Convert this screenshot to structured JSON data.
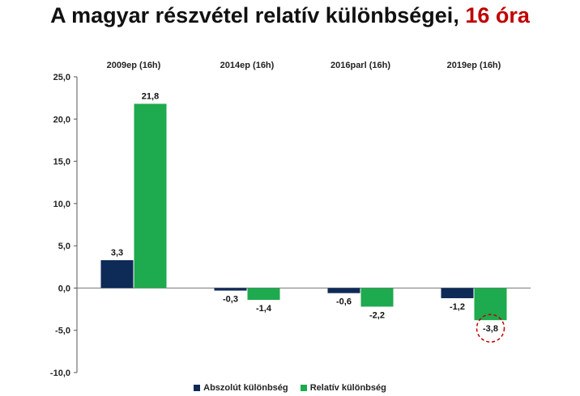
{
  "title": {
    "main": "A magyar részvétel relatív különbségei,",
    "accent": "16 óra"
  },
  "colors": {
    "abszolut": "#0e2a57",
    "relativ": "#1eaa4e",
    "accent": "#c00000",
    "highlight_circle": "#c00000"
  },
  "chart_data": {
    "type": "bar",
    "categories": [
      "2009ep (16h)",
      "2014ep (16h)",
      "2016parl (16h)",
      "2019ep (16h)"
    ],
    "series": [
      {
        "name": "Abszolút különbség",
        "values": [
          3.3,
          -0.3,
          -0.6,
          -1.2
        ],
        "labels": [
          "3,3",
          "-0,3",
          "-0,6",
          "-1,2"
        ]
      },
      {
        "name": "Relatív különbség",
        "values": [
          21.8,
          -1.4,
          -2.2,
          -3.8
        ],
        "labels": [
          "21,8",
          "-1,4",
          "-2,2",
          "-3,8"
        ]
      }
    ],
    "y_ticks": [
      "25,0",
      "20,0",
      "15,0",
      "10,0",
      "5,0",
      "0,0",
      "-5,0",
      "-10,0"
    ],
    "ylim": [
      -10,
      25
    ],
    "category_labels_position": "top",
    "grid": false,
    "legend_position": "bottom",
    "highlight": {
      "series": 1,
      "category": 3,
      "style": "dashed-circle"
    }
  }
}
